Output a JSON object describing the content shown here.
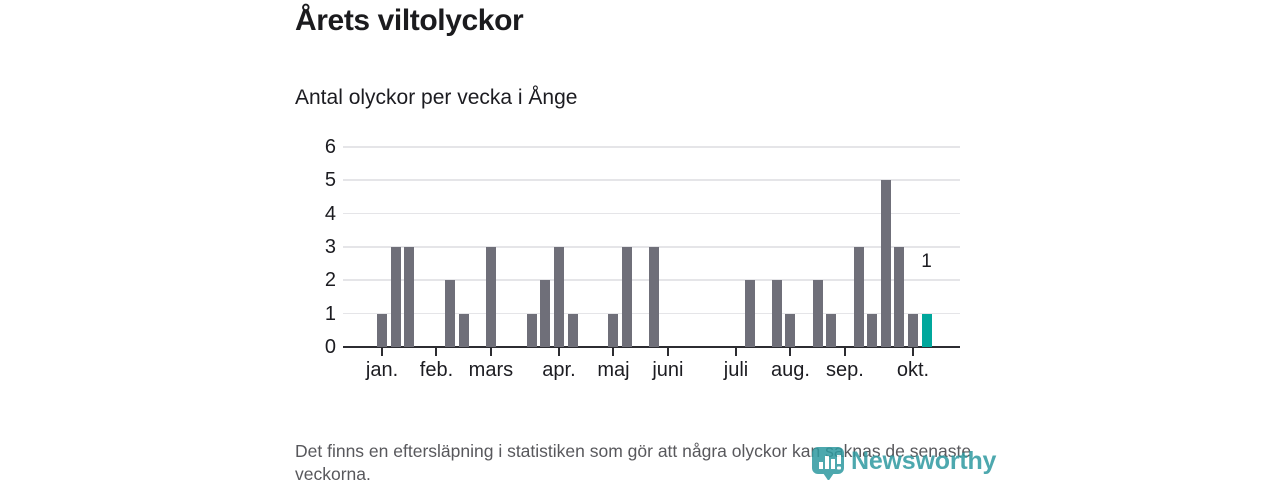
{
  "page": {
    "title": "Årets viltolyckor",
    "subtitle": "Antal olyckor per vecka i Ånge",
    "footer": "Det finns en eftersläpning i statistiken som gör att några olyckor kan saknas de senaste veckorna.",
    "logo": {
      "text": "Newsworthy",
      "icon": "newsworthy-pin-bar-chart-icon",
      "color": "#2f9aa0"
    }
  },
  "chart_data": {
    "type": "bar",
    "title": "Årets viltolyckor",
    "subtitle": "Antal olyckor per vecka i Ånge",
    "xlabel": "",
    "ylabel": "",
    "x_unit": "week",
    "weeks": {
      "start": 1,
      "end": 41
    },
    "values": [
      1,
      3,
      3,
      0,
      0,
      2,
      1,
      0,
      3,
      0,
      0,
      1,
      2,
      3,
      1,
      0,
      0,
      1,
      3,
      0,
      3,
      0,
      0,
      0,
      0,
      0,
      0,
      2,
      0,
      2,
      1,
      0,
      2,
      1,
      0,
      3,
      1,
      5,
      3,
      1,
      1
    ],
    "highlight_last_bar": true,
    "last_bar_label": "1",
    "ylim": [
      0,
      6
    ],
    "yticks": [
      0,
      1,
      2,
      3,
      4,
      5,
      6
    ],
    "grid": true,
    "legend": false,
    "month_ticks": [
      {
        "label": "jan.",
        "week": 1
      },
      {
        "label": "feb.",
        "week": 5
      },
      {
        "label": "mars",
        "week": 9
      },
      {
        "label": "apr.",
        "week": 14
      },
      {
        "label": "maj",
        "week": 18
      },
      {
        "label": "juni",
        "week": 22
      },
      {
        "label": "juli",
        "week": 27
      },
      {
        "label": "aug.",
        "week": 31
      },
      {
        "label": "sep.",
        "week": 35
      },
      {
        "label": "okt.",
        "week": 40
      }
    ],
    "colors": {
      "bar": "#6f6f79",
      "highlight": "#00a79c",
      "grid": "#e5e5e8",
      "axis": "#2c2c31",
      "text": "#1c1c21"
    }
  }
}
